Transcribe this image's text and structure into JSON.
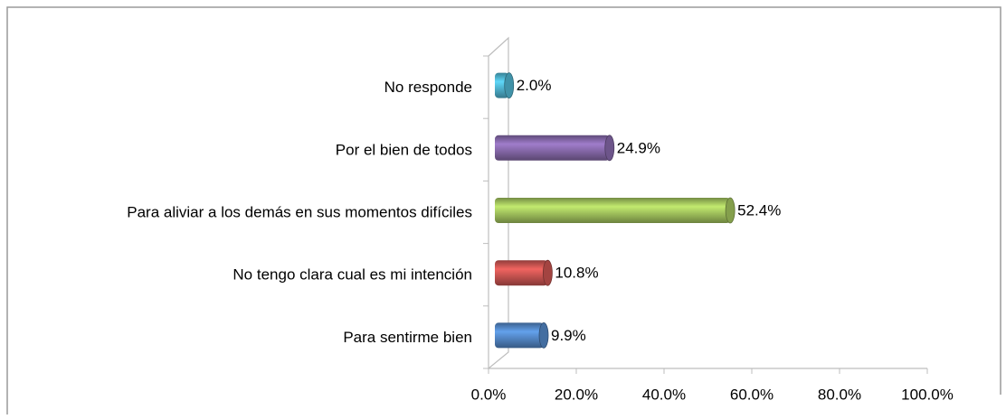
{
  "chart_data": {
    "type": "bar",
    "orientation": "horizontal",
    "categories": [
      "No responde",
      "Por el bien de todos",
      "Para aliviar a los demás en sus momentos difíciles",
      "No tengo clara cual es mi intención",
      "Para sentirme bien"
    ],
    "values": [
      2.0,
      24.9,
      52.4,
      10.8,
      9.9
    ],
    "value_labels": [
      "2.0%",
      "24.9%",
      "52.4%",
      "10.8%",
      "9.9%"
    ],
    "colors": [
      "#4bacc6",
      "#8064a2",
      "#9bbb59",
      "#c0504d",
      "#4f81bd"
    ],
    "xlim": [
      0,
      100
    ],
    "xticks": [
      {
        "value": 0,
        "label": "0.0%"
      },
      {
        "value": 20,
        "label": "20.0%"
      },
      {
        "value": 40,
        "label": "40.0%"
      },
      {
        "value": 60,
        "label": "60.0%"
      },
      {
        "value": 80,
        "label": "80.0%"
      },
      {
        "value": 100,
        "label": "100.0%"
      }
    ]
  }
}
